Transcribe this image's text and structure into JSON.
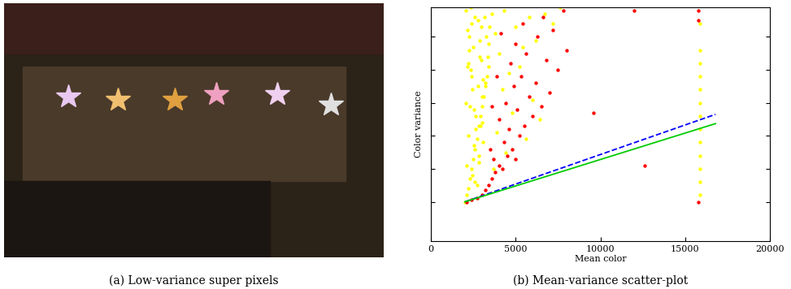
{
  "chart_data": [
    {
      "type": "image",
      "caption": "(a) Low-variance super pixels"
    },
    {
      "type": "scatter",
      "caption": "(b) Mean-variance scatter-plot",
      "x_label": "Mean color",
      "y_label": "Color variance",
      "xlim": [
        0,
        20000
      ],
      "xticks": [
        0,
        5000,
        10000,
        15000,
        20000
      ],
      "ylim": [
        -0.2,
        6.9
      ],
      "yticks": [
        1,
        2,
        3,
        4,
        5,
        6
      ],
      "tick_labels": "x",
      "series": [
        {
          "type": "scatter",
          "color": "#ffff00",
          "marker": "o",
          "x": [
            2000,
            2050,
            2100,
            2150,
            2200,
            2250,
            2300,
            2350,
            2400,
            2450,
            2500,
            2550,
            2600,
            2650,
            2700,
            2750,
            2800,
            2850,
            2900,
            2950,
            3000,
            3050,
            3100,
            3150,
            3200,
            3250,
            3300,
            3350,
            3400,
            3450,
            2100,
            2200,
            2300,
            2400,
            2500,
            2600,
            2700,
            2800,
            2900,
            3000,
            2150,
            2250,
            2350,
            2450,
            2550,
            2650,
            2750,
            2850,
            2950,
            3050,
            2050,
            2200,
            2400,
            2600,
            2800,
            3000,
            3200,
            3400,
            3600,
            3800,
            4000,
            4300,
            4600,
            5000,
            5400,
            5800,
            6200,
            6700,
            7200,
            7600,
            3900,
            4200,
            4800,
            5200,
            5600,
            4400,
            3700,
            6000,
            6400,
            15900,
            15900,
            15900,
            15900,
            15900,
            15900,
            15900,
            15900,
            15900,
            15900,
            15900,
            15900,
            15900
          ],
          "values": [
            1.0,
            6.8,
            1.2,
            6.2,
            1.4,
            5.6,
            1.7,
            5.0,
            2.0,
            4.4,
            2.3,
            3.8,
            2.6,
            3.2,
            2.9,
            6.5,
            3.3,
            5.9,
            3.6,
            5.3,
            3.9,
            4.7,
            4.2,
            6.6,
            4.5,
            6.0,
            4.8,
            5.4,
            5.1,
            6.3,
            2.1,
            3.0,
            3.9,
            4.8,
            5.7,
            6.6,
            1.5,
            2.4,
            3.3,
            4.2,
            5.1,
            6.0,
            6.9,
            1.8,
            2.7,
            3.6,
            4.5,
            5.4,
            6.3,
            2.8,
            4.0,
            5.2,
            6.4,
            1.6,
            2.2,
            3.4,
            4.6,
            5.8,
            6.7,
            6.1,
            5.5,
            6.8,
            4.9,
            6.3,
            5.7,
            6.6,
            5.9,
            6.7,
            6.4,
            6.9,
            3.1,
            4.4,
            3.7,
            5.1,
            2.9,
            2.5,
            2.0,
            4.1,
            3.5,
            1.2,
            1.6,
            2.0,
            2.4,
            2.8,
            3.2,
            3.6,
            4.0,
            4.4,
            4.8,
            5.2,
            5.6,
            6.4
          ]
        },
        {
          "type": "scatter",
          "color": "#ff0000",
          "marker": "o",
          "x": [
            2100,
            2400,
            2700,
            3000,
            3200,
            3400,
            3600,
            3800,
            4000,
            4200,
            3700,
            4500,
            4800,
            5000,
            4300,
            5200,
            4600,
            5500,
            4000,
            6000,
            5100,
            6500,
            4400,
            5800,
            7000,
            4900,
            6200,
            5300,
            7500,
            4700,
            6800,
            5600,
            8000,
            5000,
            6300,
            7200,
            5400,
            6600,
            7800,
            9600,
            12600,
            12000,
            15800,
            15800,
            15800,
            3500,
            3900,
            4100,
            3600
          ],
          "values": [
            1.0,
            1.05,
            1.1,
            1.2,
            1.35,
            1.5,
            1.7,
            1.9,
            2.1,
            2.0,
            2.3,
            2.4,
            2.6,
            2.3,
            2.8,
            3.0,
            3.2,
            3.3,
            3.5,
            3.6,
            3.8,
            3.9,
            4.0,
            4.2,
            4.3,
            4.5,
            4.6,
            4.8,
            5.0,
            5.2,
            5.3,
            5.5,
            5.6,
            5.8,
            6.0,
            6.2,
            6.4,
            6.6,
            6.8,
            3.7,
            2.1,
            6.8,
            6.8,
            6.5,
            1.0,
            2.6,
            4.8,
            6.1,
            3.9
          ]
        },
        {
          "type": "line",
          "color": "#0000ff",
          "line_style": "dashed",
          "x": [
            2000,
            16800
          ],
          "values": [
            1.0,
            3.65
          ]
        },
        {
          "type": "line",
          "color": "#00cc00",
          "line_style": "solid",
          "x": [
            2000,
            16800
          ],
          "values": [
            1.0,
            3.37
          ]
        }
      ]
    }
  ]
}
